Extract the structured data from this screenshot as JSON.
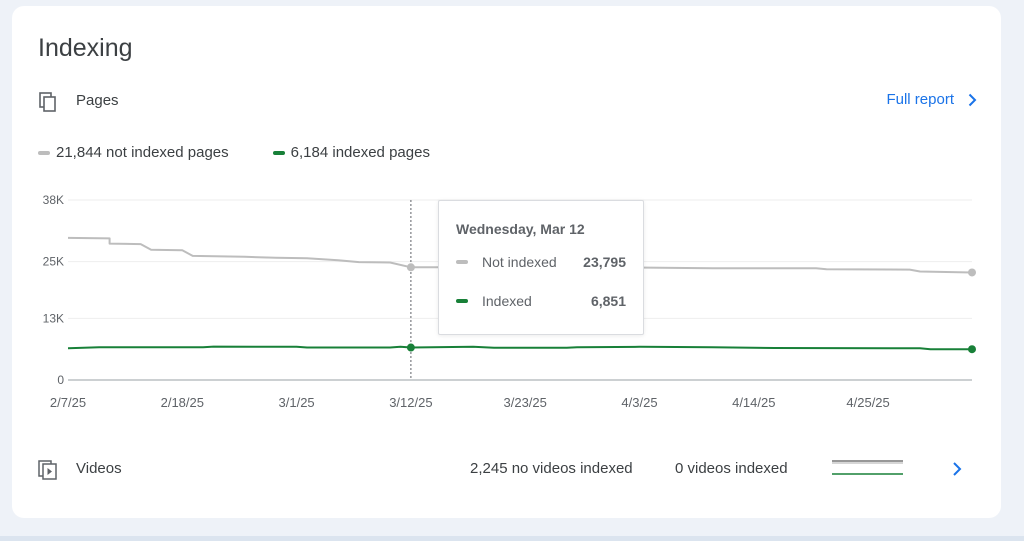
{
  "card": {
    "title": "Indexing",
    "pages_label": "Pages",
    "full_report_label": "Full report"
  },
  "legend": {
    "not_indexed": "21,844 not indexed pages",
    "indexed": "6,184 indexed pages"
  },
  "colors": {
    "not_indexed": "#bdbdbd",
    "indexed": "#188038",
    "link": "#1a73e8"
  },
  "tooltip": {
    "date": "Wednesday, Mar 12",
    "rows": [
      {
        "name": "Not indexed",
        "value": "23,795"
      },
      {
        "name": "Indexed",
        "value": "6,851"
      }
    ]
  },
  "videos": {
    "label": "Videos",
    "no_videos_indexed": "2,245 no videos indexed",
    "videos_indexed": "0 videos indexed"
  },
  "chart_data": {
    "type": "line",
    "ylim": [
      0,
      38000
    ],
    "y_ticks": [
      {
        "value": 0,
        "label": "0"
      },
      {
        "value": 13000,
        "label": "13K"
      },
      {
        "value": 25000,
        "label": "25K"
      },
      {
        "value": 38000,
        "label": "38K"
      }
    ],
    "x_ticks": [
      "2/7/25",
      "2/18/25",
      "3/1/25",
      "3/12/25",
      "3/23/25",
      "4/3/25",
      "4/14/25",
      "4/25/25"
    ],
    "x_start": "2025-02-07",
    "x_end": "2025-05-05",
    "highlight_date": "2025-03-12",
    "grid": true,
    "legend_position": "top-left",
    "series": [
      {
        "name": "Not indexed",
        "color": "#bdbdbd",
        "points": [
          [
            "2025-02-07",
            30000
          ],
          [
            "2025-02-11",
            29900
          ],
          [
            "2025-02-11",
            28800
          ],
          [
            "2025-02-14",
            28700
          ],
          [
            "2025-02-15",
            27500
          ],
          [
            "2025-02-18",
            27400
          ],
          [
            "2025-02-19",
            26200
          ],
          [
            "2025-02-24",
            26000
          ],
          [
            "2025-02-27",
            25800
          ],
          [
            "2025-03-02",
            25700
          ],
          [
            "2025-03-05",
            25300
          ],
          [
            "2025-03-07",
            24900
          ],
          [
            "2025-03-10",
            24800
          ],
          [
            "2025-03-12",
            23795
          ],
          [
            "2025-03-14",
            23800
          ],
          [
            "2025-03-20",
            23800
          ],
          [
            "2025-04-01",
            23800
          ],
          [
            "2025-04-05",
            23700
          ],
          [
            "2025-04-10",
            23600
          ],
          [
            "2025-04-20",
            23600
          ],
          [
            "2025-04-21",
            23400
          ],
          [
            "2025-04-29",
            23300
          ],
          [
            "2025-04-30",
            22900
          ],
          [
            "2025-05-05",
            22700
          ]
        ]
      },
      {
        "name": "Indexed",
        "color": "#188038",
        "points": [
          [
            "2025-02-07",
            6700
          ],
          [
            "2025-02-10",
            6900
          ],
          [
            "2025-02-20",
            6900
          ],
          [
            "2025-02-21",
            7050
          ],
          [
            "2025-03-01",
            7000
          ],
          [
            "2025-03-02",
            6851
          ],
          [
            "2025-03-10",
            6851
          ],
          [
            "2025-03-11",
            7000
          ],
          [
            "2025-03-12",
            6851
          ],
          [
            "2025-03-18",
            7000
          ],
          [
            "2025-03-20",
            6800
          ],
          [
            "2025-03-27",
            6800
          ],
          [
            "2025-03-28",
            6900
          ],
          [
            "2025-04-03",
            7000
          ],
          [
            "2025-04-10",
            6900
          ],
          [
            "2025-04-16",
            6750
          ],
          [
            "2025-04-30",
            6700
          ],
          [
            "2025-05-01",
            6500
          ],
          [
            "2025-05-05",
            6500
          ]
        ]
      }
    ]
  }
}
